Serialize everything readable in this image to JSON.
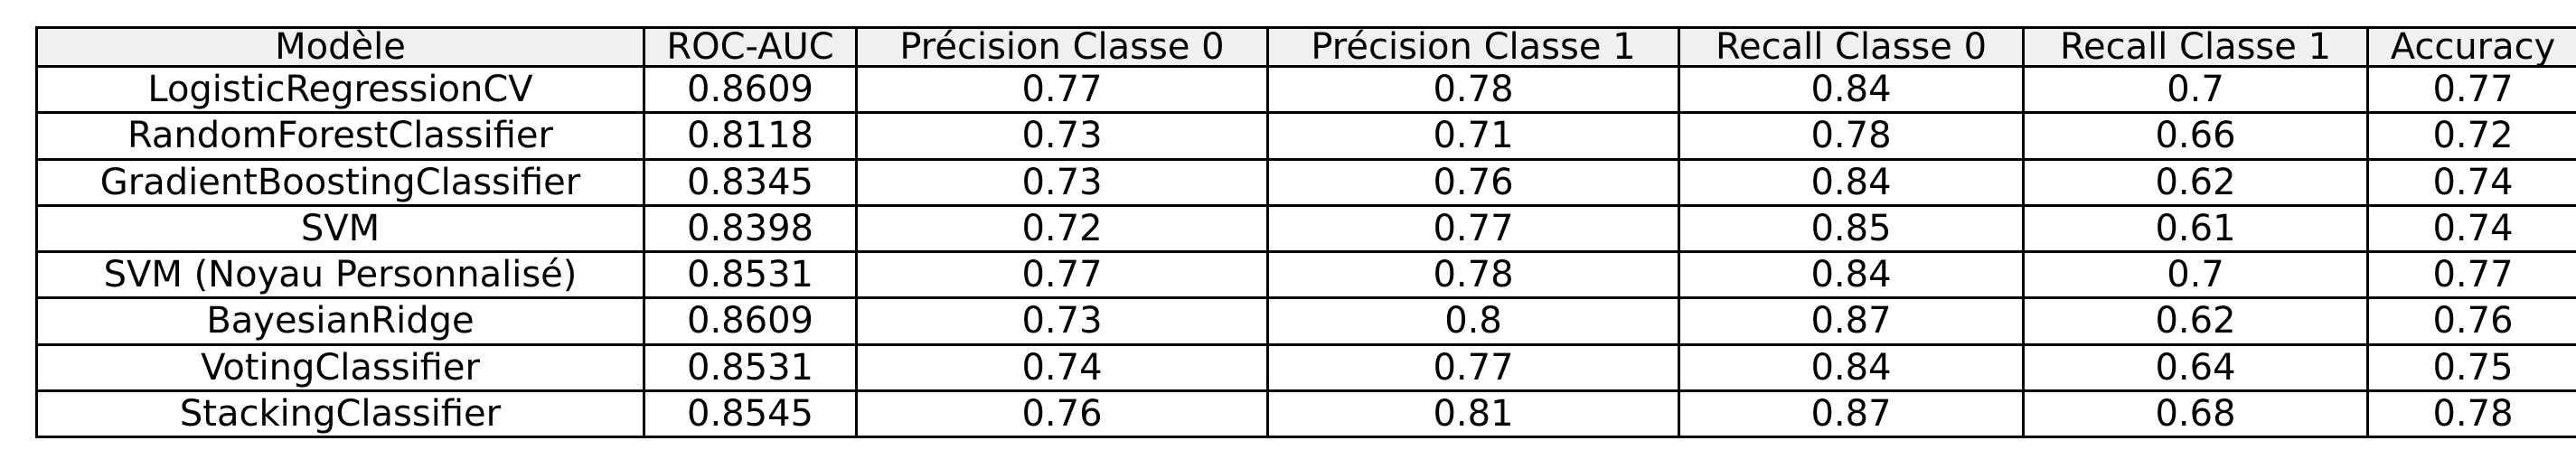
{
  "chart_data": {
    "type": "table",
    "columns": [
      "Modèle",
      "ROC-AUC",
      "Précision Classe 0",
      "Précision Classe 1",
      "Recall Classe 0",
      "Recall Classe 1",
      "Accuracy"
    ],
    "rows": [
      [
        "LogisticRegressionCV",
        "0.8609",
        "0.77",
        "0.78",
        "0.84",
        "0.7",
        "0.77"
      ],
      [
        "RandomForestClassifier",
        "0.8118",
        "0.73",
        "0.71",
        "0.78",
        "0.66",
        "0.72"
      ],
      [
        "GradientBoostingClassifier",
        "0.8345",
        "0.73",
        "0.76",
        "0.84",
        "0.62",
        "0.74"
      ],
      [
        "SVM",
        "0.8398",
        "0.72",
        "0.77",
        "0.85",
        "0.61",
        "0.74"
      ],
      [
        "SVM (Noyau Personnalisé)",
        "0.8531",
        "0.77",
        "0.78",
        "0.84",
        "0.7",
        "0.77"
      ],
      [
        "BayesianRidge",
        "0.8609",
        "0.73",
        "0.8",
        "0.87",
        "0.62",
        "0.76"
      ],
      [
        "VotingClassifier",
        "0.8531",
        "0.74",
        "0.77",
        "0.84",
        "0.64",
        "0.75"
      ],
      [
        "StackingClassifier",
        "0.8545",
        "0.76",
        "0.81",
        "0.87",
        "0.68",
        "0.78"
      ]
    ],
    "colors": {
      "header_background": "#f0f0f0",
      "cell_background": "#ffffff",
      "border": "#000000",
      "text": "#000000"
    }
  }
}
